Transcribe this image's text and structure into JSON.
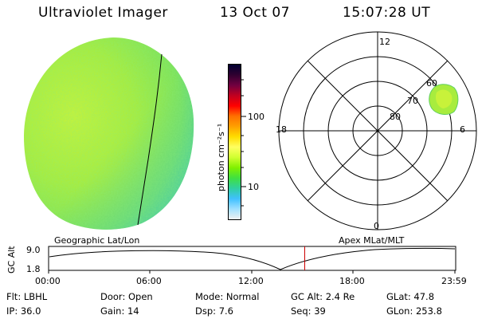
{
  "header": {
    "title": "Ultraviolet Imager",
    "date": "13 Oct 07",
    "time": "15:07:28 UT"
  },
  "colorbar": {
    "unit_label": "photon cm⁻²s⁻¹",
    "ticks": [
      "100",
      "10"
    ],
    "colors": [
      "#000030",
      "#300030",
      "#700040",
      "#c00020",
      "#ff0000",
      "#ff7000",
      "#ffa000",
      "#ffdd00",
      "#ffff60",
      "#d0ff30",
      "#80f000",
      "#40e040",
      "#30d0a0",
      "#40c0ff",
      "#a0e0ff",
      "#f0f0f0"
    ]
  },
  "polar_plot": {
    "lat_labels": [
      "80",
      "70",
      "60"
    ],
    "mlt_labels": [
      "12",
      "18",
      "6",
      "0"
    ]
  },
  "timeline": {
    "left_title": "Geographic Lat/Lon",
    "right_title": "Apex MLat/MLT",
    "y_axis_label": "GC Alt",
    "y_ticks": [
      "9.0",
      "1.8"
    ],
    "x_ticks": [
      "00:00",
      "06:00",
      "12:00",
      "18:00",
      "23:59"
    ],
    "current_marker_hour": 15.12
  },
  "footer": {
    "row1": [
      {
        "label": "Flt:",
        "value": "LBHL"
      },
      {
        "label": "Door:",
        "value": "Open"
      },
      {
        "label": "Mode:",
        "value": "Normal"
      },
      {
        "label": "GC Alt:",
        "value": "2.4 Re"
      },
      {
        "label": "GLat:",
        "value": "47.8"
      }
    ],
    "row2": [
      {
        "label": "IP:",
        "value": "36.0"
      },
      {
        "label": "Gain:",
        "value": "14"
      },
      {
        "label": "Dsp:",
        "value": "7.6"
      },
      {
        "label": "Seq:",
        "value": "39"
      },
      {
        "label": "GLon:",
        "value": "253.8"
      }
    ]
  }
}
